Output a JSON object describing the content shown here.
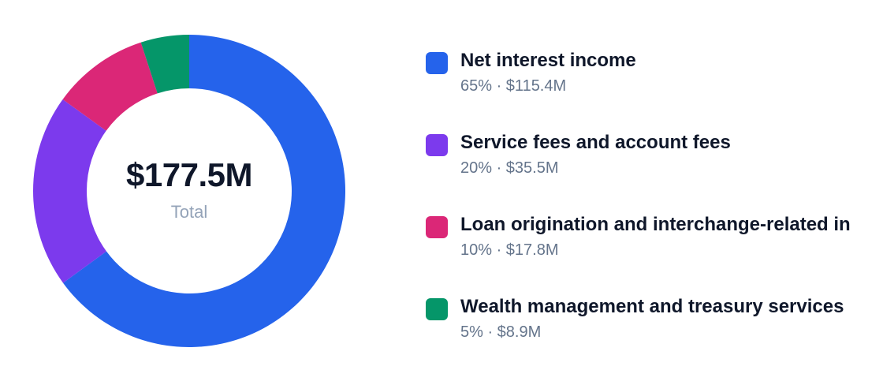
{
  "colors": {
    "blue": "#2563eb",
    "purple": "#7c3aed",
    "pink": "#db2777",
    "green": "#059669",
    "center_value_color": "#0f172a",
    "center_label_color": "#94a3b8"
  },
  "center": {
    "value": "$177.5M",
    "label": "Total"
  },
  "legend": [
    {
      "name": "Net interest income",
      "meta": "65% · $115.4M"
    },
    {
      "name": "Service fees and account fees",
      "meta": "20% · $35.5M"
    },
    {
      "name": "Loan origination and interchange-related in",
      "meta": "10% · $17.8M"
    },
    {
      "name": "Wealth management and treasury services",
      "meta": "5% · $8.9M"
    }
  ],
  "chart_data": {
    "type": "pie",
    "categories": [
      "Net interest income",
      "Service fees and account fees",
      "Loan origination and interchange-related in",
      "Wealth management and treasury services"
    ],
    "values": [
      115.4,
      35.5,
      17.8,
      8.9
    ],
    "percentages": [
      65,
      20,
      10,
      5
    ],
    "colors": [
      "#2563eb",
      "#7c3aed",
      "#db2777",
      "#059669"
    ],
    "total": "$177.5M",
    "donut": true,
    "legend": "right"
  }
}
